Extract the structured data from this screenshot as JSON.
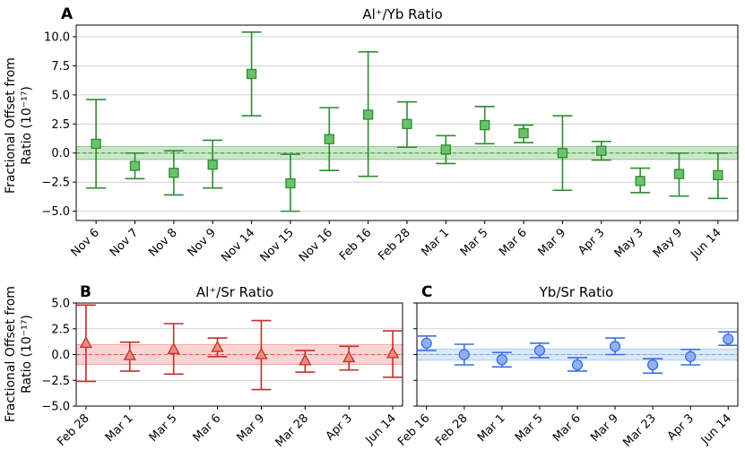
{
  "chart_data": [
    {
      "panel": "A",
      "type": "scatter",
      "title": "Al⁺/Yb Ratio",
      "ylabel_line1": "Fractional Offset from",
      "ylabel_line2": "Ratio (10⁻¹⁷)",
      "ylim": [
        -5.8,
        11.0
      ],
      "yticks": [
        -5.0,
        -2.5,
        0.0,
        2.5,
        5.0,
        7.5,
        10.0
      ],
      "ytick_labels": [
        "−5.0",
        "−2.5",
        "0.0",
        "2.5",
        "5.0",
        "7.5",
        "10.0"
      ],
      "categories": [
        "Nov 6",
        "Nov 7",
        "Nov 8",
        "Nov 9",
        "Nov 14",
        "Nov 15",
        "Nov 16",
        "Feb 16",
        "Feb 28",
        "Mar 1",
        "Mar 5",
        "Mar 6",
        "Mar 9",
        "Apr 3",
        "May 3",
        "May 9",
        "Jun 14"
      ],
      "values": [
        0.8,
        -1.1,
        -1.7,
        -1.0,
        6.8,
        -2.6,
        1.2,
        3.3,
        2.5,
        0.3,
        2.4,
        1.7,
        0.0,
        0.2,
        -2.4,
        -1.8,
        -1.9
      ],
      "err_low": [
        -3.0,
        -2.2,
        -3.6,
        -3.0,
        3.2,
        -5.0,
        -1.5,
        -2.0,
        0.5,
        -0.9,
        0.8,
        0.9,
        -3.2,
        -0.6,
        -3.4,
        -3.7,
        -3.9
      ],
      "err_high": [
        4.6,
        0.0,
        0.2,
        1.1,
        10.4,
        -0.1,
        3.9,
        8.7,
        4.4,
        1.5,
        4.0,
        2.4,
        3.2,
        1.0,
        -1.3,
        0.0,
        0.0
      ],
      "band": {
        "center": 0.0,
        "low": -0.55,
        "high": 0.55
      },
      "marker": "square",
      "color": "#2e8b2e",
      "fill_color": "#6cc26c",
      "band_color": "#2ca02c"
    },
    {
      "panel": "B",
      "type": "scatter",
      "title": "Al⁺/Sr Ratio",
      "ylabel_line1": "Fractional Offset from",
      "ylabel_line2": "Ratio (10⁻¹⁷)",
      "ylim": [
        -5.0,
        5.0
      ],
      "yticks": [
        -5.0,
        -2.5,
        0.0,
        2.5,
        5.0
      ],
      "ytick_labels": [
        "−5.0",
        "−2.5",
        "0.0",
        "2.5",
        "5.0"
      ],
      "categories": [
        "Feb 28",
        "Mar 1",
        "Mar 5",
        "Mar 6",
        "Mar 9",
        "Mar 28",
        "Apr 3",
        "Jun 14"
      ],
      "values": [
        1.1,
        -0.1,
        0.5,
        0.7,
        0.0,
        -0.6,
        -0.3,
        0.1
      ],
      "err_low": [
        -2.6,
        -1.6,
        -1.9,
        -0.2,
        -3.4,
        -1.7,
        -1.5,
        -2.2
      ],
      "err_high": [
        4.8,
        1.2,
        3.0,
        1.6,
        3.3,
        0.4,
        0.8,
        2.3
      ],
      "band": {
        "center": 0.0,
        "low": -0.95,
        "high": 0.95
      },
      "marker": "triangle",
      "color": "#c0302b",
      "fill_color": "#f08a7e",
      "band_color": "#e8524a"
    },
    {
      "panel": "C",
      "type": "scatter",
      "title": "Yb/Sr Ratio",
      "ylim": [
        -5.0,
        5.0
      ],
      "yticks": [
        -5.0,
        -2.5,
        0.0,
        2.5,
        5.0
      ],
      "categories": [
        "Feb 16",
        "Feb 28",
        "Mar 1",
        "Mar 5",
        "Mar 6",
        "Mar 9",
        "Mar 23",
        "Apr 3",
        "Jun 14"
      ],
      "values": [
        1.1,
        0.0,
        -0.5,
        0.4,
        -1.0,
        0.8,
        -1.0,
        -0.2,
        1.5
      ],
      "err_low": [
        0.4,
        -1.0,
        -1.2,
        -0.3,
        -1.6,
        0.0,
        -1.8,
        -1.0,
        0.9
      ],
      "err_high": [
        1.8,
        1.0,
        0.2,
        1.1,
        -0.3,
        1.6,
        -0.4,
        0.5,
        2.2
      ],
      "band": {
        "center": 0.0,
        "low": -0.55,
        "high": 0.55
      },
      "marker": "circle",
      "color": "#3d6fe0",
      "fill_color": "#8fb0f5",
      "band_color": "#6fa8f5"
    }
  ]
}
